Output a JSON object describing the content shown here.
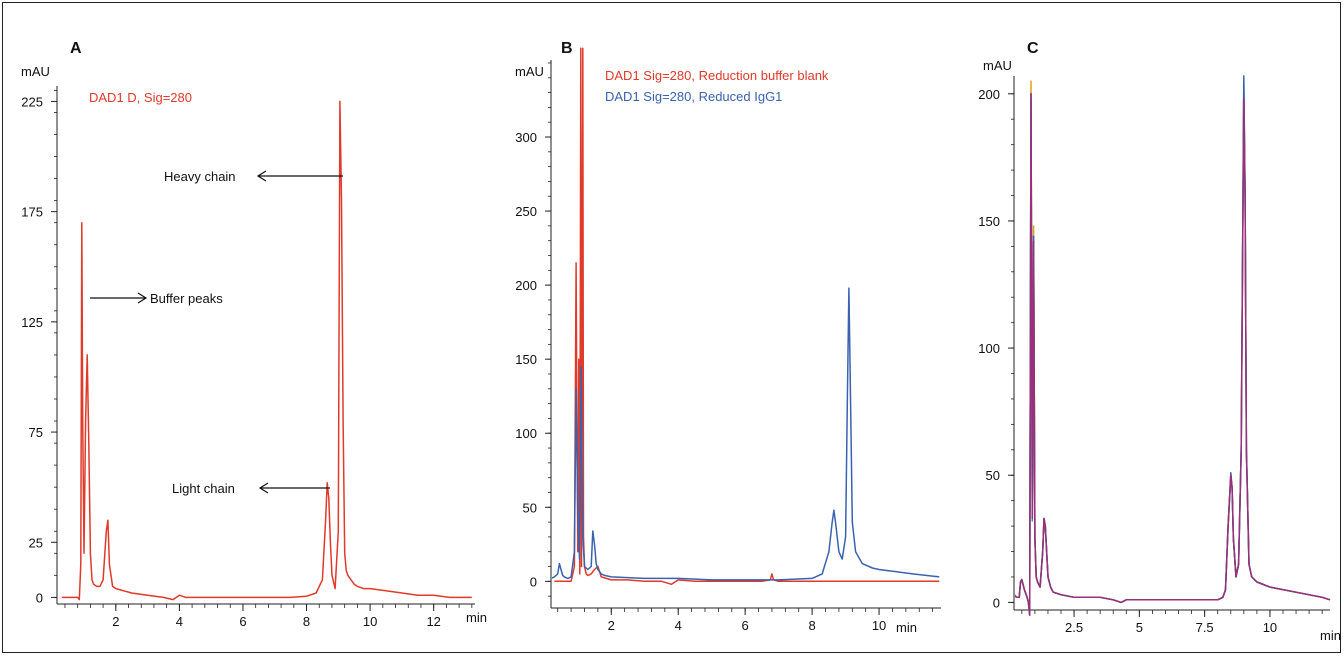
{
  "chart_data": [
    {
      "panel_label": "A",
      "type": "line",
      "ylabel": "mAU",
      "xlabel": "min",
      "xlim": [
        0.15,
        13.3
      ],
      "ylim": [
        -3,
        232
      ],
      "xticks": [
        2,
        4,
        6,
        8,
        10,
        12
      ],
      "yticks": [
        0,
        25,
        75,
        125,
        175,
        225
      ],
      "series": [
        {
          "name": "DAD1 D, Sig=280",
          "color": "#e03a2a",
          "x": [
            0.3,
            0.6,
            0.8,
            0.85,
            0.9,
            0.93,
            0.96,
            1.0,
            1.05,
            1.1,
            1.15,
            1.2,
            1.25,
            1.3,
            1.4,
            1.5,
            1.6,
            1.7,
            1.75,
            1.8,
            1.9,
            2.0,
            2.5,
            3.0,
            3.5,
            3.8,
            4.0,
            4.2,
            4.5,
            5.0,
            5.5,
            6.0,
            6.5,
            7.0,
            7.5,
            8.0,
            8.3,
            8.5,
            8.6,
            8.65,
            8.7,
            8.75,
            8.8,
            8.9,
            9.0,
            9.05,
            9.1,
            9.15,
            9.2,
            9.25,
            9.3,
            9.4,
            9.5,
            9.6,
            9.8,
            10.0,
            10.5,
            11.0,
            11.5,
            12.0,
            12.5,
            13.0,
            13.2
          ],
          "y": [
            0,
            0,
            0,
            -1,
            15,
            170,
            80,
            20,
            80,
            110,
            70,
            20,
            8,
            6,
            5,
            5,
            8,
            30,
            35,
            15,
            5,
            4,
            2,
            1,
            0,
            -1,
            1,
            0,
            0,
            0,
            0,
            0,
            0,
            0,
            0,
            0.5,
            2,
            8,
            35,
            52,
            45,
            25,
            10,
            4,
            30,
            225,
            180,
            80,
            20,
            12,
            10,
            8,
            6,
            5,
            4,
            4,
            3,
            2,
            1,
            1,
            0,
            0,
            0
          ]
        }
      ],
      "annotations": [
        {
          "text": "Heavy chain",
          "target_x": 9.0,
          "target_y": 196
        },
        {
          "text": "Buffer peaks",
          "target_x": 0.97,
          "target_y": 137
        },
        {
          "text": "Light chain",
          "target_x": 8.6,
          "target_y": 52
        }
      ]
    },
    {
      "panel_label": "B",
      "type": "line",
      "ylabel": "mAU",
      "xlabel": "min",
      "xlim": [
        0.2,
        11.85
      ],
      "ylim": [
        -18,
        352
      ],
      "xticks": [
        2,
        4,
        6,
        8,
        10
      ],
      "yticks": [
        0,
        50,
        100,
        150,
        200,
        250,
        300
      ],
      "series": [
        {
          "name": "DAD1 Sig=280, Reduction buffer blank",
          "color": "#e03a2a",
          "x": [
            0.3,
            0.6,
            0.8,
            0.9,
            0.95,
            0.98,
            1.0,
            1.03,
            1.06,
            1.09,
            1.11,
            1.15,
            1.17,
            1.2,
            1.25,
            1.3,
            1.4,
            1.5,
            1.6,
            1.7,
            2.0,
            2.5,
            3.0,
            3.5,
            3.8,
            4.0,
            4.5,
            5.0,
            6.0,
            6.5,
            6.75,
            6.8,
            6.85,
            7.0,
            8.0,
            9.0,
            10.0,
            11.0,
            11.8
          ],
          "y": [
            0,
            0,
            0,
            10,
            215,
            80,
            20,
            150,
            5,
            360,
            10,
            360,
            30,
            10,
            5,
            4,
            5,
            8,
            10,
            3,
            1,
            1,
            0,
            0,
            -2,
            1,
            0,
            0,
            0,
            0,
            1,
            5,
            1,
            0,
            0,
            0,
            0,
            0,
            0
          ]
        },
        {
          "name": "DAD1 Sig=280, Reduced IgG1",
          "color": "#3a62b0",
          "x": [
            0.2,
            0.3,
            0.4,
            0.45,
            0.5,
            0.55,
            0.6,
            0.7,
            0.8,
            0.9,
            0.95,
            1.0,
            1.05,
            1.1,
            1.15,
            1.2,
            1.3,
            1.4,
            1.45,
            1.5,
            1.55,
            1.6,
            1.7,
            1.8,
            2.0,
            3.0,
            4.0,
            5.0,
            6.0,
            7.0,
            8.0,
            8.3,
            8.5,
            8.6,
            8.65,
            8.7,
            8.8,
            8.9,
            9.0,
            9.05,
            9.1,
            9.15,
            9.2,
            9.3,
            9.5,
            9.8,
            10.0,
            11.0,
            11.8
          ],
          "y": [
            2,
            3,
            5,
            12,
            8,
            4,
            3,
            2,
            3,
            20,
            130,
            50,
            15,
            145,
            30,
            10,
            8,
            10,
            34,
            25,
            12,
            8,
            5,
            4,
            3,
            2,
            2,
            1,
            1,
            1,
            2,
            5,
            20,
            40,
            48,
            40,
            20,
            15,
            30,
            120,
            198,
            120,
            40,
            20,
            12,
            9,
            8,
            5,
            3
          ]
        }
      ]
    },
    {
      "panel_label": "C",
      "type": "line",
      "ylabel": "mAU",
      "xlabel": "min",
      "xlim": [
        0.2,
        12.3
      ],
      "ylim": [
        -3,
        207
      ],
      "xticks": [
        2.5,
        5,
        7.5,
        10
      ],
      "yticks": [
        0,
        50,
        100,
        150,
        200
      ],
      "series": [
        {
          "color": "#e0a020",
          "x": [
            0.2,
            0.3,
            0.4,
            0.45,
            0.5,
            0.6,
            0.7,
            0.75,
            0.8,
            0.85,
            0.9,
            0.95,
            1.0,
            1.05,
            1.1,
            1.2,
            1.3,
            1.35,
            1.4,
            1.5,
            1.6,
            1.7,
            2.0,
            2.5,
            3.0,
            3.5,
            4.0,
            4.3,
            4.5,
            5.0,
            6.0,
            7.0,
            7.5,
            8.0,
            8.2,
            8.3,
            8.4,
            8.5,
            8.55,
            8.6,
            8.7,
            8.8,
            8.9,
            9.0,
            9.05,
            9.1,
            9.2,
            9.3,
            9.5,
            10.0,
            11.0,
            12.0,
            12.3
          ],
          "y": [
            3,
            2,
            2,
            8,
            9,
            5,
            2,
            0,
            -5,
            205,
            35,
            148,
            25,
            10,
            8,
            6,
            20,
            33,
            30,
            10,
            6,
            4,
            3,
            2,
            2,
            2,
            1,
            0,
            1,
            1,
            1,
            1,
            1,
            1,
            2,
            5,
            30,
            50,
            45,
            25,
            10,
            15,
            60,
            202,
            160,
            60,
            15,
            10,
            8,
            6,
            4,
            2,
            1
          ]
        },
        {
          "color": "#2ca6a4",
          "x": [
            0.2,
            0.3,
            0.4,
            0.45,
            0.5,
            0.6,
            0.7,
            0.75,
            0.8,
            0.85,
            0.9,
            0.95,
            1.0,
            1.05,
            1.1,
            1.2,
            1.3,
            1.35,
            1.4,
            1.5,
            1.6,
            1.7,
            2.0,
            2.5,
            3.0,
            3.5,
            4.0,
            4.3,
            4.5,
            5.0,
            6.0,
            7.0,
            7.5,
            8.0,
            8.2,
            8.3,
            8.4,
            8.5,
            8.55,
            8.6,
            8.7,
            8.8,
            8.9,
            9.0,
            9.05,
            9.1,
            9.2,
            9.3,
            9.5,
            10.0,
            11.0,
            12.0,
            12.3
          ],
          "y": [
            3,
            2,
            2,
            8,
            9,
            5,
            2,
            0,
            -5,
            198,
            32,
            142,
            25,
            10,
            8,
            6,
            20,
            33,
            30,
            10,
            6,
            4,
            3,
            2,
            2,
            2,
            1,
            0,
            1,
            1,
            1,
            1,
            1,
            1,
            2,
            5,
            30,
            49,
            45,
            25,
            10,
            15,
            60,
            204,
            160,
            60,
            15,
            10,
            8,
            6,
            4,
            2,
            1
          ]
        },
        {
          "color": "#3a62b0",
          "x": [
            0.2,
            0.3,
            0.4,
            0.45,
            0.5,
            0.6,
            0.7,
            0.75,
            0.8,
            0.85,
            0.9,
            0.95,
            1.0,
            1.05,
            1.1,
            1.2,
            1.3,
            1.35,
            1.4,
            1.5,
            1.6,
            1.7,
            2.0,
            2.5,
            3.0,
            3.5,
            4.0,
            4.3,
            4.5,
            5.0,
            6.0,
            7.0,
            7.5,
            8.0,
            8.2,
            8.3,
            8.4,
            8.5,
            8.55,
            8.6,
            8.7,
            8.8,
            8.9,
            9.0,
            9.05,
            9.1,
            9.2,
            9.3,
            9.5,
            10.0,
            11.0,
            12.0,
            12.3
          ],
          "y": [
            3,
            2,
            2,
            8,
            9,
            5,
            2,
            0,
            -5,
            200,
            33,
            144,
            25,
            10,
            8,
            6,
            20,
            33,
            30,
            10,
            6,
            4,
            3,
            2,
            2,
            2,
            1,
            0,
            1,
            1,
            1,
            1,
            1,
            1,
            2,
            5,
            30,
            51,
            45,
            25,
            10,
            15,
            60,
            207,
            160,
            60,
            15,
            10,
            8,
            6,
            4,
            2,
            1
          ]
        },
        {
          "color": "#9a2f7a",
          "x": [
            0.2,
            0.3,
            0.4,
            0.45,
            0.5,
            0.6,
            0.7,
            0.75,
            0.8,
            0.85,
            0.9,
            0.95,
            1.0,
            1.05,
            1.1,
            1.2,
            1.3,
            1.35,
            1.4,
            1.5,
            1.6,
            1.7,
            2.0,
            2.5,
            3.0,
            3.5,
            4.0,
            4.3,
            4.5,
            5.0,
            6.0,
            7.0,
            7.5,
            8.0,
            8.2,
            8.3,
            8.4,
            8.5,
            8.55,
            8.6,
            8.7,
            8.8,
            8.9,
            9.0,
            9.05,
            9.1,
            9.2,
            9.3,
            9.5,
            10.0,
            11.0,
            12.0,
            12.3
          ],
          "y": [
            3,
            2,
            2,
            8,
            9,
            5,
            2,
            0,
            -5,
            200,
            33,
            142,
            25,
            10,
            8,
            6,
            20,
            33,
            30,
            10,
            6,
            4,
            3,
            2,
            2,
            2,
            1,
            0,
            1,
            1,
            1,
            1,
            1,
            1,
            2,
            5,
            30,
            50,
            45,
            25,
            10,
            15,
            60,
            198,
            160,
            60,
            15,
            10,
            8,
            6,
            4,
            2,
            1
          ]
        }
      ]
    }
  ]
}
